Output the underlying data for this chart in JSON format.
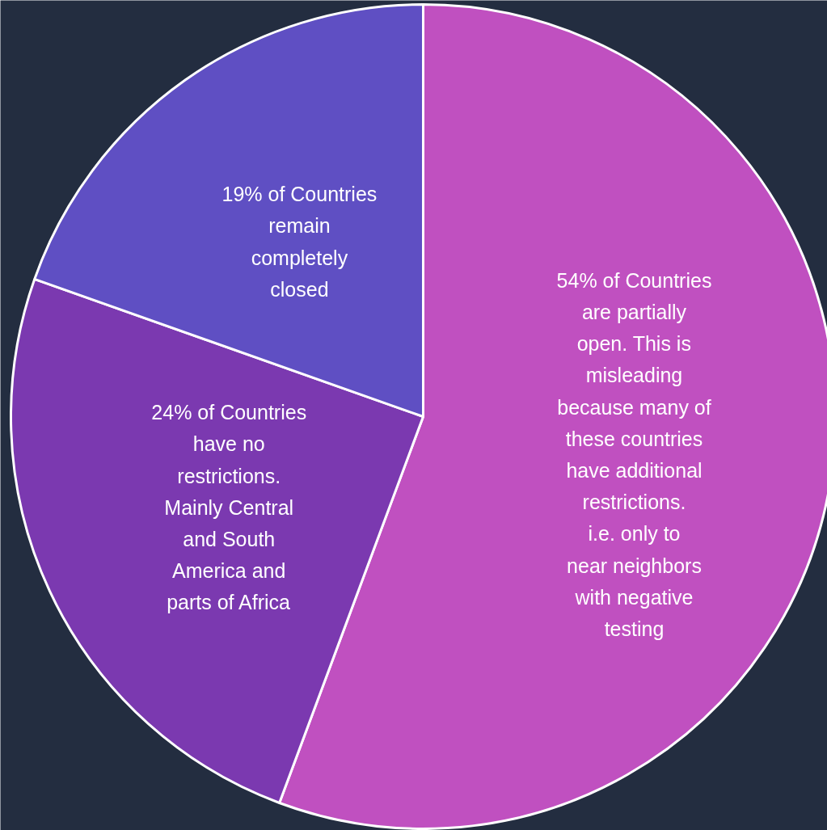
{
  "chart_data": {
    "type": "pie",
    "categories": [
      "54% of Countries are partially open. This is misleading because many of these countries have additional restrictions. i.e. only to near neighbors with negative testing",
      "24% of Countries have no restrictions. Mainly Central and South America and parts of Africa",
      "19% of Countries remain completely closed"
    ],
    "values": [
      54,
      24,
      19
    ],
    "colors": [
      "#c050c0",
      "#7b39b0",
      "#5f4fc3"
    ]
  }
}
